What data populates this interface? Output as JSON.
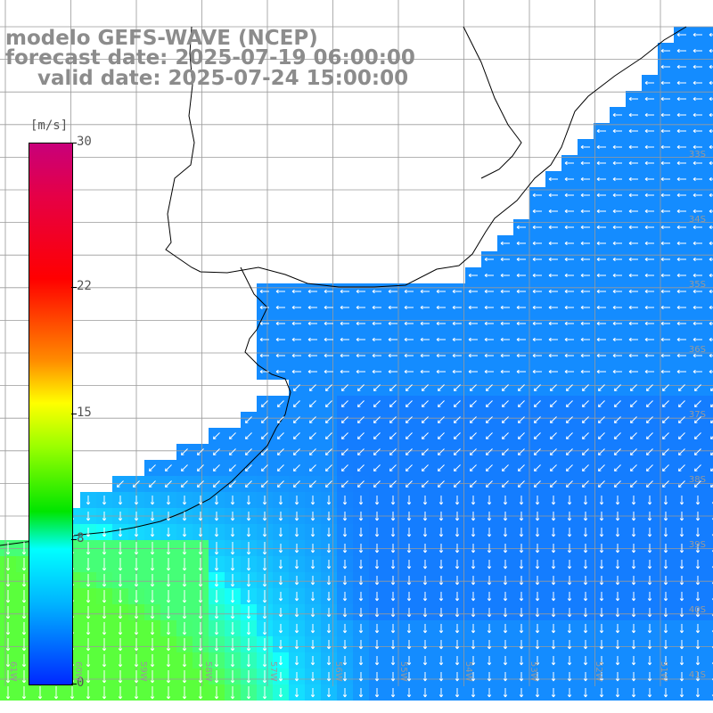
{
  "titles": {
    "line1": "modelo GEFS-WAVE (NCEP)",
    "line2": "forecast date: 2025-07-19 06:00:00",
    "line3": "valid date: 2025-07-24 15:00:00"
  },
  "colorbar": {
    "unit": "[m/s]",
    "ticks": [
      "30",
      "22",
      "15",
      "8",
      "0"
    ],
    "tick_values": [
      30,
      22,
      15,
      8,
      0
    ]
  },
  "lat_labels": [
    "33S",
    "34S",
    "35S",
    "36S",
    "37S",
    "38S",
    "39S",
    "40S",
    "41S"
  ],
  "lon_labels": [
    "61W",
    "60W",
    "59W",
    "58W",
    "57W",
    "56W",
    "55W",
    "54W",
    "53W",
    "52W",
    "51W"
  ],
  "colors": {
    "land": "#ffffff",
    "grid": "#9a9a9a",
    "coast": "#000000",
    "arrow": "#ffffff"
  }
}
